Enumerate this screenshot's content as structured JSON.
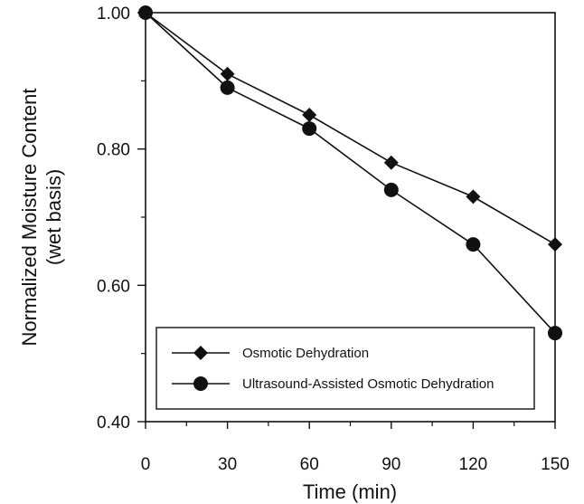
{
  "chart_data": {
    "type": "line",
    "title": "",
    "xlabel": "Time (min)",
    "ylabel_lines": [
      "Normalized Moisture Content",
      "(wet basis)"
    ],
    "xlim": [
      0,
      150
    ],
    "ylim": [
      0.4,
      1.0
    ],
    "x_ticks": [
      0,
      30,
      60,
      90,
      120,
      150
    ],
    "x_tick_labels": [
      "0",
      "30",
      "60",
      "90",
      "120",
      "150"
    ],
    "y_ticks": [
      0.4,
      0.6,
      0.8,
      1.0
    ],
    "y_tick_labels": [
      "0.40",
      "0.60",
      "0.80",
      "1.00"
    ],
    "grid": false,
    "legend_position": "bottom-right",
    "series": [
      {
        "name": "Osmotic Dehydration",
        "marker": "diamond",
        "color": "#111111",
        "x": [
          0,
          30,
          60,
          90,
          120,
          150
        ],
        "y": [
          1.0,
          0.91,
          0.85,
          0.78,
          0.73,
          0.66
        ]
      },
      {
        "name": "Ultrasound-Assisted Osmotic Dehydration",
        "marker": "circle",
        "color": "#111111",
        "x": [
          0,
          30,
          60,
          90,
          120,
          150
        ],
        "y": [
          1.0,
          0.89,
          0.83,
          0.74,
          0.66,
          0.53
        ]
      }
    ]
  }
}
